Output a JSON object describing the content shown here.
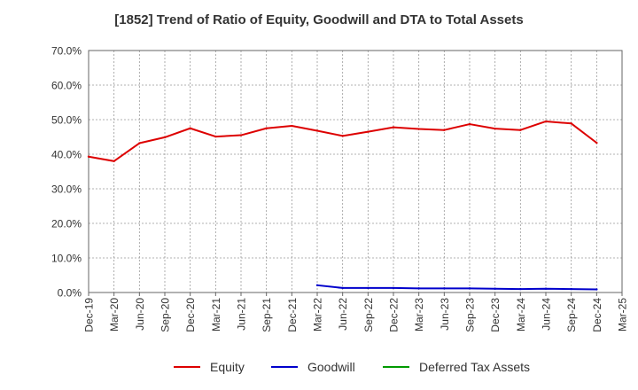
{
  "chart_data": {
    "type": "line",
    "title": "[1852]  Trend of Ratio of Equity, Goodwill and DTA to Total Assets",
    "xlabel": "",
    "ylabel": "",
    "ylim": [
      0,
      70
    ],
    "yticks": [
      "0.0%",
      "10.0%",
      "20.0%",
      "30.0%",
      "40.0%",
      "50.0%",
      "60.0%",
      "70.0%"
    ],
    "grid": true,
    "legend_position": "bottom",
    "categories": [
      "Dec-19",
      "Mar-20",
      "Jun-20",
      "Sep-20",
      "Dec-20",
      "Mar-21",
      "Jun-21",
      "Sep-21",
      "Dec-21",
      "Mar-22",
      "Jun-22",
      "Sep-22",
      "Dec-22",
      "Mar-23",
      "Jun-23",
      "Sep-23",
      "Dec-23",
      "Mar-24",
      "Jun-24",
      "Sep-24",
      "Dec-24",
      "Mar-25"
    ],
    "series": [
      {
        "name": "Equity",
        "color": "#dd0000",
        "values": [
          39.3,
          38.0,
          43.2,
          44.9,
          47.5,
          45.1,
          45.5,
          47.5,
          48.2,
          46.8,
          45.3,
          46.5,
          47.8,
          47.3,
          47.0,
          48.7,
          47.4,
          47.0,
          49.5,
          48.9,
          43.3,
          null
        ]
      },
      {
        "name": "Goodwill",
        "color": "#0000cc",
        "values": [
          null,
          null,
          null,
          null,
          null,
          null,
          null,
          null,
          null,
          2.1,
          1.3,
          1.3,
          1.3,
          1.2,
          1.2,
          1.2,
          1.1,
          1.0,
          1.1,
          1.0,
          0.9,
          null
        ]
      },
      {
        "name": "Deferred Tax Assets",
        "color": "#009900",
        "values": [
          null,
          null,
          null,
          null,
          null,
          null,
          null,
          null,
          null,
          null,
          null,
          null,
          null,
          null,
          null,
          null,
          null,
          null,
          null,
          null,
          null,
          null
        ]
      }
    ]
  }
}
